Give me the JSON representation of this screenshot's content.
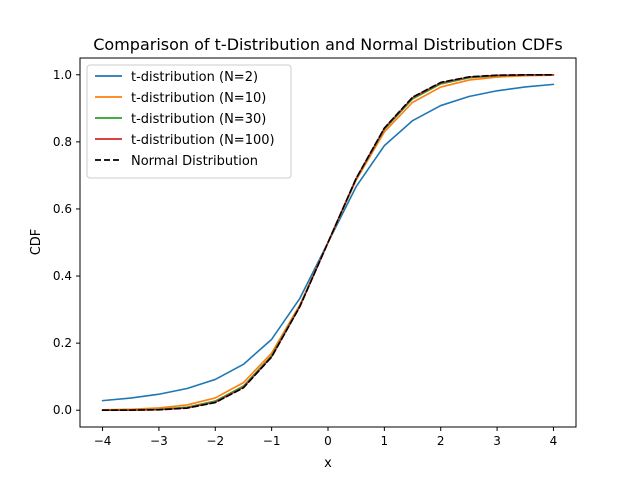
{
  "chart_data": {
    "type": "line",
    "title": "Comparison of t-Distribution and Normal Distribution CDFs",
    "xlabel": "x",
    "ylabel": "CDF",
    "xlim": [
      -4.4,
      4.4
    ],
    "ylim": [
      -0.05,
      1.05
    ],
    "xticks": [
      -4,
      -3,
      -2,
      -1,
      0,
      1,
      2,
      3,
      4
    ],
    "xtick_labels": [
      "−4",
      "−3",
      "−2",
      "−1",
      "0",
      "1",
      "2",
      "3",
      "4"
    ],
    "yticks": [
      0.0,
      0.2,
      0.4,
      0.6,
      0.8,
      1.0
    ],
    "ytick_labels": [
      "0.0",
      "0.2",
      "0.4",
      "0.6",
      "0.8",
      "1.0"
    ],
    "grid": false,
    "legend_position": "top-left",
    "x": [
      -4,
      -3.5,
      -3,
      -2.5,
      -2,
      -1.5,
      -1,
      -0.5,
      0,
      0.5,
      1,
      1.5,
      2,
      2.5,
      3,
      3.5,
      4
    ],
    "series": [
      {
        "name": "t-distribution (N=2)",
        "color": "#1f77b4",
        "dash": "solid",
        "values": [
          0.0286,
          0.0364,
          0.0477,
          0.0648,
          0.0918,
          0.1368,
          0.2113,
          0.3333,
          0.5,
          0.6667,
          0.7887,
          0.8632,
          0.9082,
          0.9352,
          0.9523,
          0.9636,
          0.9714
        ]
      },
      {
        "name": "t-distribution (N=10)",
        "color": "#ff7f0e",
        "dash": "solid",
        "values": [
          0.0013,
          0.0029,
          0.0067,
          0.0157,
          0.0367,
          0.0823,
          0.1704,
          0.3139,
          0.5,
          0.6861,
          0.8296,
          0.9177,
          0.9633,
          0.9843,
          0.9933,
          0.9971,
          0.9987
        ]
      },
      {
        "name": "t-distribution (N=30)",
        "color": "#2ca02c",
        "dash": "solid",
        "values": [
          0.0002,
          0.0007,
          0.0027,
          0.009,
          0.0273,
          0.072,
          0.1627,
          0.3104,
          0.5,
          0.6896,
          0.8373,
          0.928,
          0.9727,
          0.991,
          0.9973,
          0.9993,
          0.9998
        ]
      },
      {
        "name": "t-distribution (N=100)",
        "color": "#d62728",
        "dash": "solid",
        "values": [
          0.0001,
          0.0003,
          0.0017,
          0.007,
          0.0241,
          0.0684,
          0.1599,
          0.3091,
          0.5,
          0.6909,
          0.8401,
          0.9316,
          0.9759,
          0.993,
          0.9983,
          0.9997,
          0.9999
        ]
      },
      {
        "name": "Normal Distribution",
        "color": "#000000",
        "dash": "dashed",
        "values": [
          3e-05,
          0.0002,
          0.0013,
          0.0062,
          0.0228,
          0.0668,
          0.1587,
          0.3085,
          0.5,
          0.6915,
          0.8413,
          0.9332,
          0.9772,
          0.9938,
          0.9987,
          0.9998,
          0.99997
        ]
      }
    ]
  }
}
